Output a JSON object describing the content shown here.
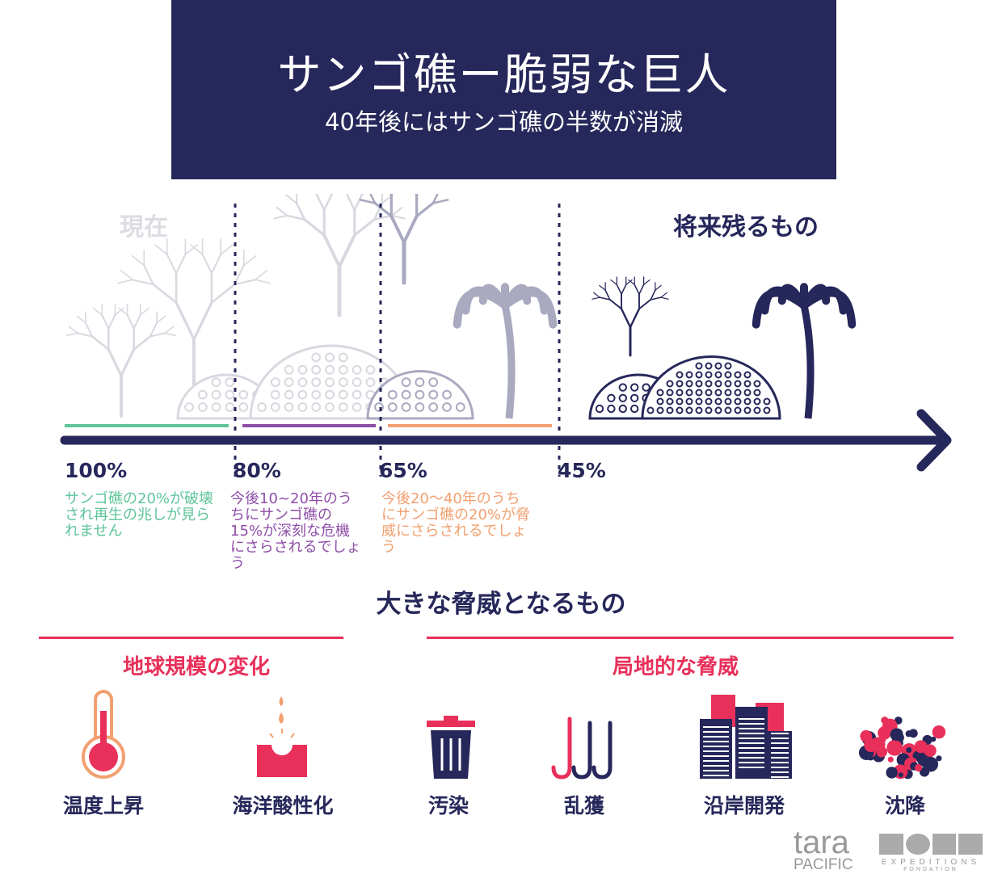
{
  "header": {
    "title": "サンゴ礁ー脆弱な巨人",
    "subtitle": "40年後にはサンゴ礁の半数が消滅"
  },
  "timeline": {
    "now_label": "現在",
    "future_label": "将来残るもの",
    "stages": [
      {
        "percent": "100%",
        "text": "サンゴ礁の20%が破壊され再生の兆しが見られません",
        "color": "#5ec49a"
      },
      {
        "percent": "80%",
        "text": "今後10~20年のうちにサンゴ礁の15%が深刻な危機にさらされるでしょう",
        "color": "#8e4ea8"
      },
      {
        "percent": "65%",
        "text": "今後20〜40年のうちにサンゴ礁の20%が脅威にさらされるでしょう",
        "color": "#f2a070"
      },
      {
        "percent": "45%"
      }
    ]
  },
  "threats": {
    "title": "大きな脅威となるもの",
    "global": {
      "label": "地球規模の変化",
      "items": [
        {
          "label": "温度上昇",
          "icon": "thermometer-icon"
        },
        {
          "label": "海洋酸性化",
          "icon": "acidification-icon"
        }
      ]
    },
    "local": {
      "label": "局地的な脅威",
      "items": [
        {
          "label": "汚染",
          "icon": "trash-icon"
        },
        {
          "label": "乱獲",
          "icon": "fishing-hooks-icon"
        },
        {
          "label": "沿岸開発",
          "icon": "buildings-icon"
        },
        {
          "label": "沈降",
          "icon": "sediment-icon"
        }
      ]
    }
  },
  "logos": {
    "tara_pacific": "tara PACIFIC",
    "tara_expeditions": "tara EXPEDITIONS FONDATION"
  },
  "colors": {
    "navy": "#26275a",
    "red": "#e8305a",
    "green": "#5ec49a",
    "purple": "#8e4ea8",
    "orange": "#f2a070",
    "light_coral": "#d8d8e0",
    "mid_coral": "#a9a9c0"
  }
}
